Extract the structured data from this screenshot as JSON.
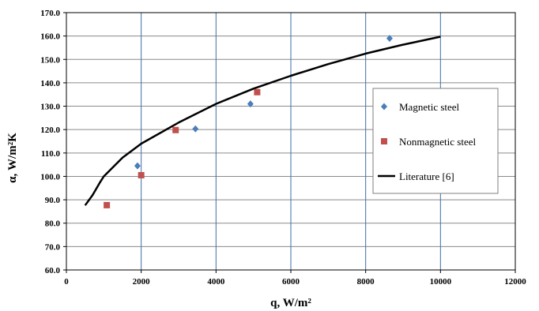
{
  "chart_data": {
    "type": "scatter",
    "xlabel": "q, W/m²",
    "ylabel": "α, W/m²K",
    "xlim": [
      0,
      12000
    ],
    "ylim": [
      60,
      170
    ],
    "x_ticks": [
      0,
      2000,
      4000,
      6000,
      8000,
      10000,
      12000
    ],
    "y_ticks": [
      60,
      70,
      80,
      90,
      100,
      110,
      120,
      130,
      140,
      150,
      160,
      170
    ],
    "x_tick_labels": [
      "0",
      "2000",
      "4000",
      "6000",
      "8000",
      "10000",
      "12000"
    ],
    "y_tick_labels": [
      "60.0",
      "70.0",
      "80.0",
      "90.0",
      "100.0",
      "110.0",
      "120.0",
      "130.0",
      "140.0",
      "150.0",
      "160.0",
      "170.0"
    ],
    "grid": true,
    "legend_position": "right",
    "series": [
      {
        "name": "Magnetic steel",
        "kind": "scatter",
        "marker": "diamond",
        "color": "#4a7ebb",
        "points": [
          [
            1900,
            104.5
          ],
          [
            3450,
            120.3
          ],
          [
            4920,
            131.0
          ],
          [
            8640,
            159.0
          ]
        ]
      },
      {
        "name": "Nonmagnetic steel",
        "kind": "scatter",
        "marker": "square",
        "color": "#c0504d",
        "points": [
          [
            1080,
            87.7
          ],
          [
            2000,
            100.5
          ],
          [
            2920,
            119.8
          ],
          [
            5100,
            136.0
          ]
        ]
      },
      {
        "name": "Literature [6]",
        "kind": "line",
        "color": "#000000",
        "points": [
          [
            500,
            87.6
          ],
          [
            700,
            92.0
          ],
          [
            900,
            97.5
          ],
          [
            1000,
            100.0
          ],
          [
            1500,
            108.0
          ],
          [
            2000,
            114.0
          ],
          [
            3000,
            123.0
          ],
          [
            4000,
            131.0
          ],
          [
            5000,
            137.5
          ],
          [
            6000,
            143.0
          ],
          [
            7000,
            148.0
          ],
          [
            8000,
            152.5
          ],
          [
            9000,
            156.3
          ],
          [
            10000,
            159.7
          ]
        ]
      }
    ]
  }
}
